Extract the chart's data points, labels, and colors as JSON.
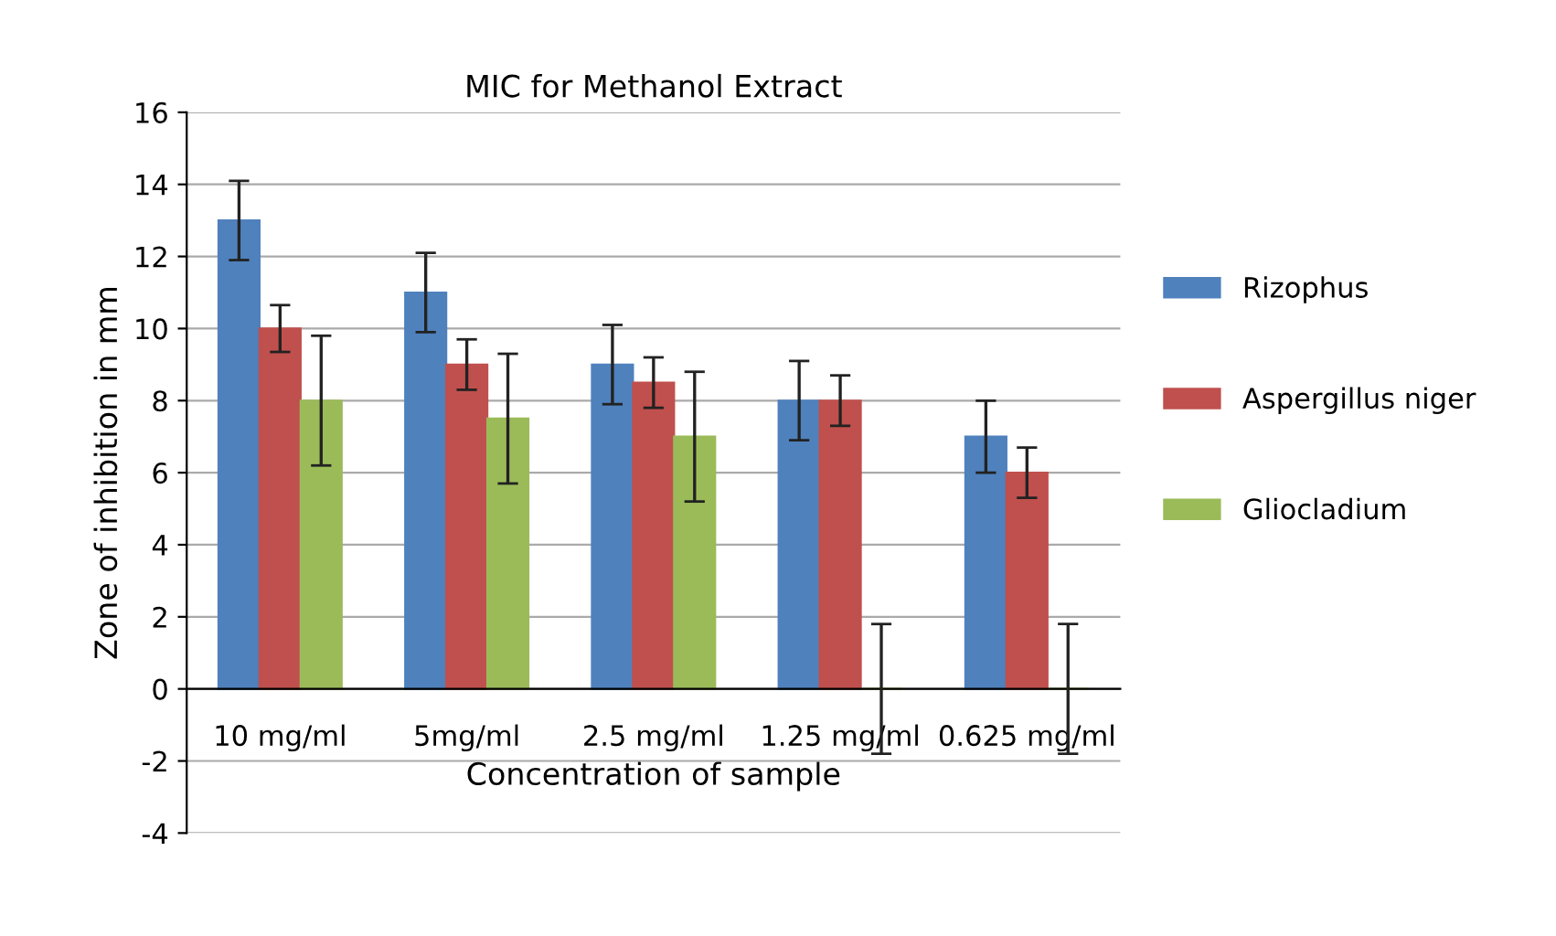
{
  "chart_data": {
    "type": "bar",
    "title": "MIC for Methanol Extract",
    "xlabel": "Concentration of sample",
    "ylabel": "Zone of inhibition in mm",
    "categories": [
      "10 mg/ml",
      "5mg/ml",
      "2.5 mg/ml",
      "1.25 mg/ml",
      "0.625 mg/ml"
    ],
    "series": [
      {
        "name": "Rizophus",
        "color": "#4f81bd",
        "values": [
          13,
          11,
          9,
          8,
          7
        ],
        "errors": [
          1.1,
          1.1,
          1.1,
          1.1,
          1
        ]
      },
      {
        "name": "Aspergillus niger",
        "color": "#c0504d",
        "values": [
          10,
          9,
          8.5,
          8,
          6
        ],
        "errors": [
          0.65,
          0.7,
          0.7,
          0.7,
          0.7
        ]
      },
      {
        "name": "Gliocladium",
        "color": "#9bbb59",
        "values": [
          8,
          7.5,
          7,
          0,
          0
        ],
        "errors": [
          1.8,
          1.8,
          1.8,
          1.8,
          1.8
        ]
      }
    ],
    "ylim": [
      -4,
      16
    ],
    "yticks": [
      -4,
      -2,
      0,
      2,
      4,
      6,
      8,
      10,
      12,
      14,
      16
    ],
    "grid": "y",
    "legend": "right"
  }
}
